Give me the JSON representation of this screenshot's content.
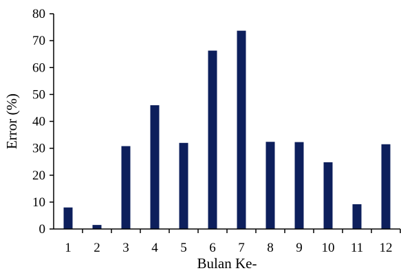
{
  "chart_data": {
    "type": "bar",
    "categories": [
      "1",
      "2",
      "3",
      "4",
      "5",
      "6",
      "7",
      "8",
      "9",
      "10",
      "11",
      "12"
    ],
    "values": [
      8.0,
      1.5,
      30.8,
      46.0,
      32.0,
      66.3,
      73.7,
      32.4,
      32.3,
      24.8,
      9.2,
      31.5
    ],
    "xlabel": "Bulan Ke-",
    "ylabel": "Error (%)",
    "ylim": [
      0,
      80
    ],
    "yticks": [
      "0",
      "10",
      "20",
      "30",
      "40",
      "50",
      "60",
      "70",
      "80"
    ],
    "grid": false,
    "legend": "none",
    "bar_color": "#0d1f5c",
    "axis_color": "#000000"
  }
}
